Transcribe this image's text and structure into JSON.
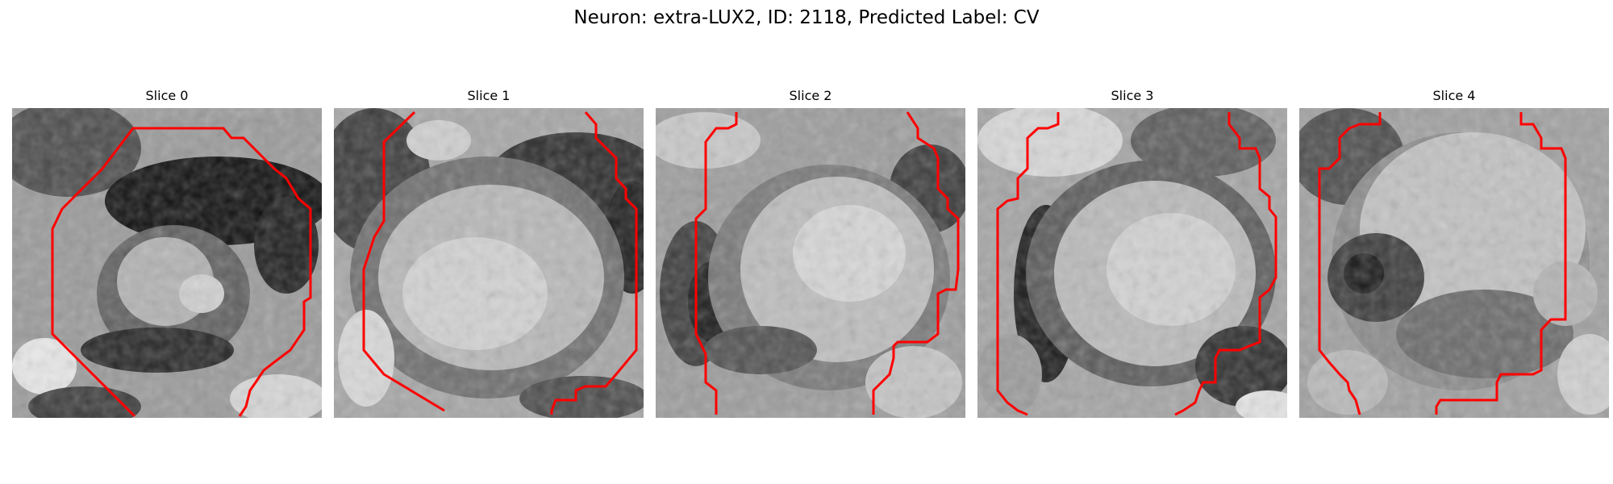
{
  "figure": {
    "title": "Neuron: extra-LUX2, ID: 2118, Predicted Label: CV",
    "contour_color": "#ff0000",
    "panels": [
      {
        "title": "Slice 0"
      },
      {
        "title": "Slice 1"
      },
      {
        "title": "Slice 2"
      },
      {
        "title": "Slice 3"
      },
      {
        "title": "Slice 4"
      }
    ]
  }
}
